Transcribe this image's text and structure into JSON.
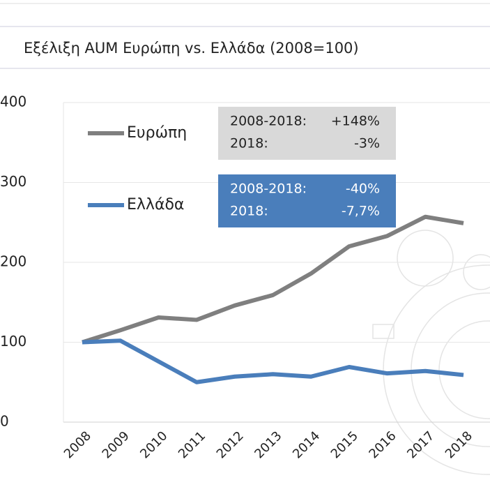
{
  "chart_data": {
    "type": "line",
    "title": "Εξέλιξη AUM Ευρώπη vs. Ελλάδα (2008=100)",
    "categories": [
      "2008",
      "2009",
      "2010",
      "2011",
      "2012",
      "2013",
      "2014",
      "2015",
      "2016",
      "2017",
      "2018"
    ],
    "series": [
      {
        "name": "Ευρώπη",
        "color": "#7f7f7f",
        "values": [
          100,
          115,
          131,
          128,
          146,
          159,
          186,
          220,
          233,
          257,
          249
        ]
      },
      {
        "name": "Ελλάδα",
        "color": "#4a7ebb",
        "values": [
          100,
          102,
          76,
          50,
          57,
          60,
          57,
          69,
          61,
          64,
          59
        ]
      }
    ],
    "ylim": [
      0,
      400
    ],
    "yticks": [
      0,
      100,
      200,
      300,
      400
    ],
    "grid": true,
    "annotations": [
      {
        "color": "#d9d9d9",
        "lines": [
          [
            "2008-2018:",
            "+148%"
          ],
          [
            "2018:",
            "-3%"
          ]
        ]
      },
      {
        "color": "#4a7ebb",
        "lines": [
          [
            "2008-2018:",
            "-40%"
          ],
          [
            "2018:",
            "-7,7%"
          ]
        ]
      }
    ]
  }
}
